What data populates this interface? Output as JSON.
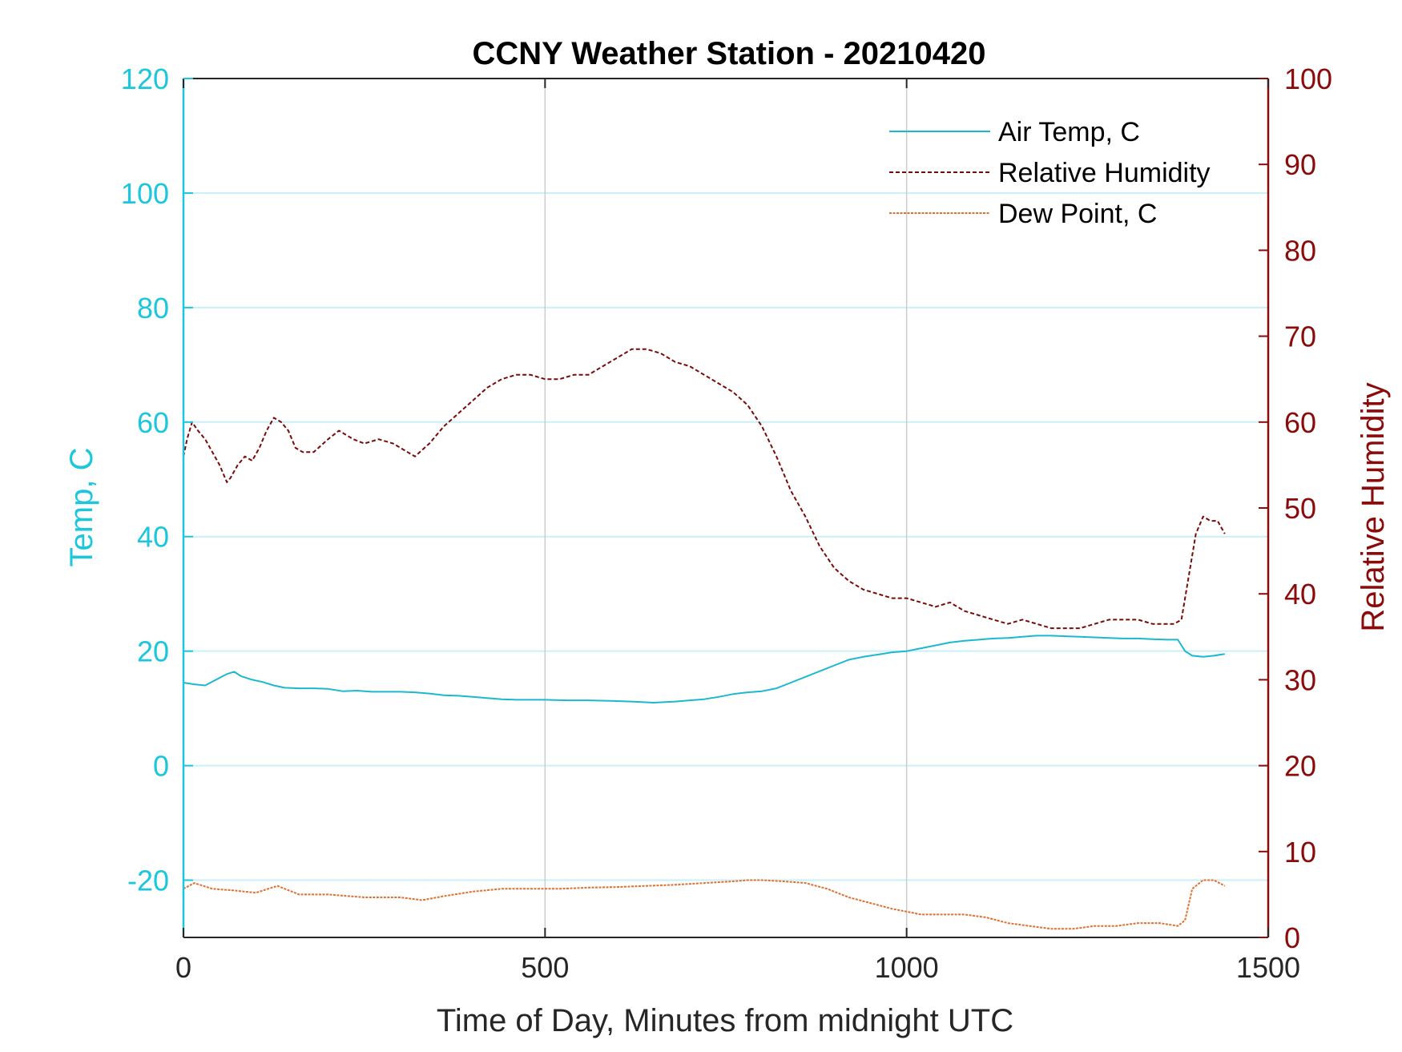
{
  "chart_data": {
    "type": "line",
    "title": "CCNY Weather Station - 20210420",
    "xlabel": "Time of Day, Minutes from midnight UTC",
    "ylabel_left": "Temp, C",
    "ylabel_right": "Relative Humidity",
    "xlim": [
      0,
      1500
    ],
    "ylim_left": [
      -30,
      120
    ],
    "ylim_right": [
      0,
      100
    ],
    "xticks": [
      0,
      500,
      1000,
      1500
    ],
    "xtick_labels": [
      "0",
      "500",
      "1000",
      "1500"
    ],
    "yticks_left": [
      -20,
      0,
      20,
      40,
      60,
      80,
      100,
      120
    ],
    "ytick_labels_left": [
      "-20",
      "0",
      "20",
      "40",
      "60",
      "80",
      "100",
      "120"
    ],
    "yticks_right": [
      0,
      10,
      20,
      30,
      40,
      50,
      60,
      70,
      80,
      90,
      100
    ],
    "ytick_labels_right": [
      "0",
      "10",
      "20",
      "30",
      "40",
      "50",
      "60",
      "70",
      "80",
      "90",
      "100"
    ],
    "grid": true,
    "legend_position": "top-right",
    "colors": {
      "left_axis": "#1cc6dc",
      "right_axis": "#8b0a0a",
      "air_temp": "#1cb8d0",
      "humidity": "#7a0a0a",
      "dew_point": "#e07030",
      "grid_left": "#c8f0f6",
      "grid_vertical": "#cccccc"
    },
    "series": [
      {
        "name": "Air Temp, C",
        "axis": "left",
        "style": "solid",
        "x": [
          0,
          15,
          30,
          45,
          60,
          70,
          80,
          95,
          110,
          125,
          140,
          160,
          180,
          200,
          220,
          240,
          260,
          280,
          300,
          320,
          340,
          360,
          380,
          400,
          420,
          440,
          460,
          480,
          500,
          530,
          560,
          590,
          620,
          650,
          680,
          700,
          720,
          740,
          760,
          780,
          800,
          820,
          840,
          860,
          880,
          900,
          920,
          940,
          960,
          980,
          1000,
          1020,
          1040,
          1060,
          1080,
          1100,
          1120,
          1140,
          1160,
          1180,
          1200,
          1220,
          1240,
          1260,
          1280,
          1300,
          1320,
          1340,
          1360,
          1375,
          1385,
          1395,
          1410,
          1425,
          1440
        ],
        "values": [
          14.5,
          14.2,
          14.0,
          15.0,
          16.0,
          16.4,
          15.6,
          15.0,
          14.6,
          14.0,
          13.6,
          13.5,
          13.5,
          13.4,
          13.0,
          13.1,
          12.9,
          12.9,
          12.9,
          12.8,
          12.6,
          12.3,
          12.2,
          12.0,
          11.8,
          11.6,
          11.5,
          11.5,
          11.5,
          11.4,
          11.4,
          11.3,
          11.2,
          11.0,
          11.2,
          11.4,
          11.6,
          12.0,
          12.5,
          12.8,
          13.0,
          13.5,
          14.5,
          15.5,
          16.5,
          17.5,
          18.5,
          19.0,
          19.4,
          19.8,
          20.0,
          20.5,
          21.0,
          21.5,
          21.8,
          22.0,
          22.2,
          22.3,
          22.5,
          22.7,
          22.7,
          22.6,
          22.5,
          22.4,
          22.3,
          22.2,
          22.2,
          22.1,
          22.0,
          22.0,
          20.0,
          19.2,
          19.0,
          19.2,
          19.5
        ]
      },
      {
        "name": "Relative Humidity",
        "axis": "right",
        "style": "dashed",
        "x": [
          0,
          5,
          12,
          20,
          30,
          40,
          50,
          60,
          65,
          75,
          85,
          95,
          105,
          115,
          125,
          135,
          145,
          155,
          165,
          180,
          200,
          215,
          225,
          235,
          250,
          270,
          290,
          310,
          320,
          340,
          360,
          380,
          400,
          420,
          440,
          460,
          480,
          500,
          520,
          540,
          560,
          580,
          600,
          620,
          640,
          660,
          680,
          700,
          720,
          740,
          760,
          780,
          800,
          820,
          840,
          860,
          880,
          900,
          920,
          940,
          960,
          980,
          1000,
          1020,
          1040,
          1060,
          1080,
          1100,
          1120,
          1140,
          1160,
          1180,
          1200,
          1220,
          1240,
          1260,
          1280,
          1300,
          1320,
          1340,
          1360,
          1370,
          1380,
          1390,
          1400,
          1410,
          1420,
          1430,
          1440
        ],
        "values": [
          56.0,
          58.0,
          60.0,
          59.0,
          58.0,
          56.5,
          55.0,
          53.0,
          53.5,
          55.0,
          56.0,
          55.5,
          57.0,
          59.0,
          60.5,
          60.0,
          59.0,
          57.0,
          56.5,
          56.5,
          58.0,
          59.0,
          58.5,
          58.0,
          57.5,
          58.0,
          57.5,
          56.5,
          56.0,
          57.5,
          59.5,
          61.0,
          62.5,
          64.0,
          65.0,
          65.5,
          65.5,
          65.0,
          65.0,
          65.5,
          65.5,
          66.5,
          67.5,
          68.5,
          68.5,
          68.0,
          67.0,
          66.5,
          65.5,
          64.5,
          63.5,
          62.0,
          59.5,
          56.0,
          52.0,
          49.0,
          45.5,
          43.0,
          41.5,
          40.5,
          40.0,
          39.5,
          39.5,
          39.0,
          38.5,
          39.0,
          38.0,
          37.5,
          37.0,
          36.5,
          37.0,
          36.5,
          36.0,
          36.0,
          36.0,
          36.5,
          37.0,
          37.0,
          37.0,
          36.5,
          36.5,
          36.5,
          37.0,
          42.0,
          47.0,
          49.0,
          48.5,
          48.5,
          47.0
        ]
      },
      {
        "name": "Dew Point, C",
        "axis": "left",
        "style": "dashed",
        "x": [
          0,
          15,
          40,
          70,
          100,
          130,
          160,
          200,
          250,
          300,
          330,
          360,
          400,
          440,
          480,
          520,
          560,
          600,
          640,
          680,
          720,
          760,
          780,
          800,
          830,
          860,
          890,
          920,
          950,
          980,
          1000,
          1020,
          1050,
          1080,
          1110,
          1140,
          1170,
          1200,
          1230,
          1260,
          1290,
          1320,
          1350,
          1375,
          1385,
          1395,
          1410,
          1425,
          1440
        ],
        "values": [
          -21.5,
          -20.5,
          -21.5,
          -21.8,
          -22.2,
          -21.0,
          -22.5,
          -22.5,
          -23.0,
          -23.0,
          -23.5,
          -22.8,
          -22.0,
          -21.5,
          -21.5,
          -21.5,
          -21.3,
          -21.2,
          -21.0,
          -20.8,
          -20.5,
          -20.2,
          -20.0,
          -20.0,
          -20.2,
          -20.5,
          -21.5,
          -23.0,
          -24.0,
          -25.0,
          -25.5,
          -26.0,
          -26.0,
          -26.0,
          -26.5,
          -27.5,
          -28.0,
          -28.5,
          -28.5,
          -28.0,
          -28.0,
          -27.5,
          -27.5,
          -28.0,
          -27.0,
          -21.5,
          -20.0,
          -20.0,
          -21.0
        ]
      }
    ]
  }
}
